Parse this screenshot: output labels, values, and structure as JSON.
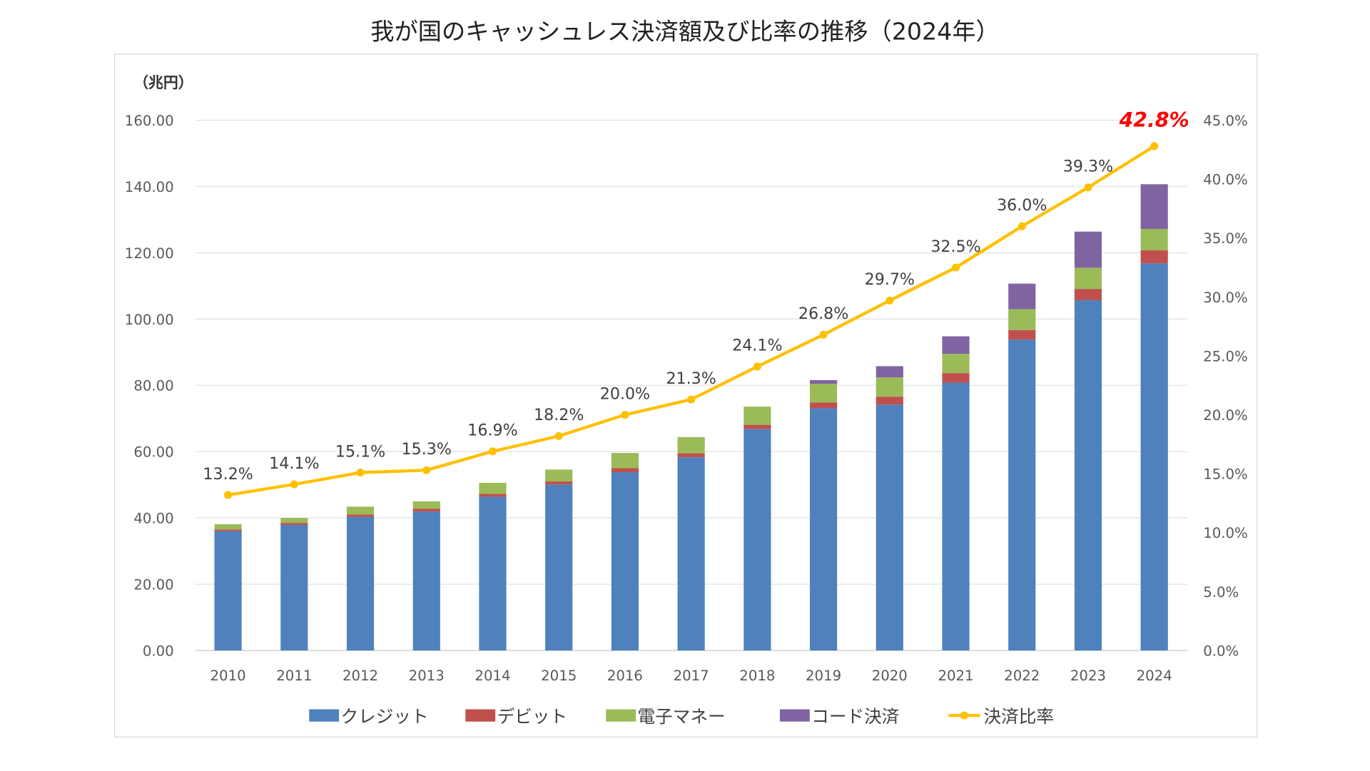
{
  "chart_data": {
    "type": "bar",
    "title": "我が国のキャッシュレス決済額及び比率の推移（2024年）",
    "ylabel": "（兆円）",
    "ylim": [
      0,
      160
    ],
    "y2lim": [
      0,
      45
    ],
    "yticks": [
      "0.00",
      "20.00",
      "40.00",
      "60.00",
      "80.00",
      "100.00",
      "120.00",
      "140.00",
      "160.00"
    ],
    "y2ticks": [
      "0.0%",
      "5.0%",
      "10.0%",
      "15.0%",
      "20.0%",
      "25.0%",
      "30.0%",
      "35.0%",
      "40.0%",
      "45.0%"
    ],
    "categories": [
      "2010",
      "2011",
      "2012",
      "2013",
      "2014",
      "2015",
      "2016",
      "2017",
      "2018",
      "2019",
      "2020",
      "2021",
      "2022",
      "2023",
      "2024"
    ],
    "series": [
      {
        "name": "クレジット",
        "color": "#4f81bd",
        "values": [
          36.0,
          37.9,
          40.3,
          41.9,
          46.4,
          50.1,
          53.8,
          58.3,
          66.8,
          73.1,
          74.2,
          80.8,
          93.8,
          105.7,
          116.8
        ]
      },
      {
        "name": "デビット",
        "color": "#c0504d",
        "values": [
          0.5,
          0.6,
          0.7,
          0.9,
          0.9,
          0.9,
          1.2,
          1.2,
          1.3,
          1.7,
          2.4,
          2.9,
          2.9,
          3.4,
          4.0
        ]
      },
      {
        "name": "電子マネー",
        "color": "#9bbb59",
        "values": [
          1.6,
          1.5,
          2.4,
          2.2,
          3.3,
          3.6,
          4.6,
          4.9,
          5.5,
          5.7,
          5.8,
          5.8,
          6.3,
          6.4,
          6.4
        ]
      },
      {
        "name": "コード決済",
        "color": "#8064a2",
        "values": [
          0,
          0,
          0,
          0,
          0,
          0,
          0,
          0,
          0,
          1.1,
          3.4,
          5.3,
          7.7,
          10.9,
          13.5
        ]
      }
    ],
    "line": {
      "name": "決済比率",
      "color": "#ffc000",
      "axis": "right",
      "values": [
        13.2,
        14.1,
        15.1,
        15.3,
        16.9,
        18.2,
        20.0,
        21.3,
        24.1,
        26.8,
        29.7,
        32.5,
        36.0,
        39.3,
        42.8
      ],
      "labels": [
        "13.2%",
        "14.1%",
        "15.1%",
        "15.3%",
        "16.9%",
        "18.2%",
        "20.0%",
        "21.3%",
        "24.1%",
        "26.8%",
        "29.7%",
        "32.5%",
        "36.0%",
        "39.3%",
        "42.8%"
      ],
      "highlight_color": "#ff0000"
    },
    "grid": true,
    "legend": "bottom"
  }
}
